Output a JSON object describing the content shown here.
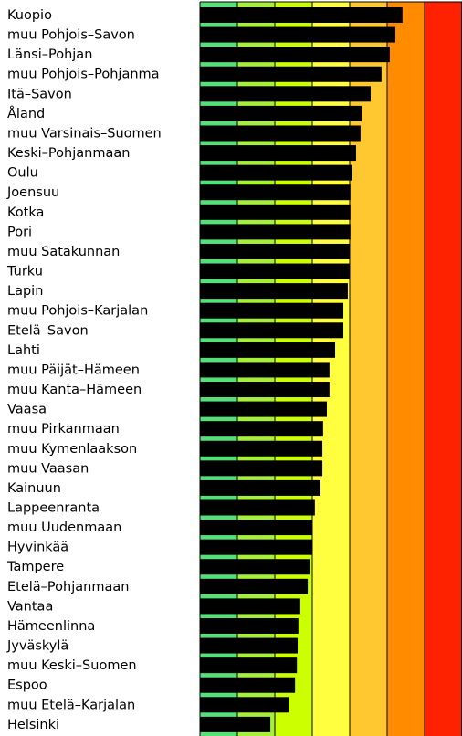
{
  "chart_data": {
    "type": "bar",
    "orientation": "horizontal",
    "categories": [
      "Kuopio",
      "muu Pohjois–Savon",
      "Länsi–Pohjan",
      "muu Pohjois–Pohjanma",
      "Itä–Savon",
      "Åland",
      "muu Varsinais–Suomen",
      "Keski–Pohjanmaan",
      "Oulu",
      "Joensuu",
      "Kotka",
      "Pori",
      "muu Satakunnan",
      "Turku",
      "Lapin",
      "muu Pohjois–Karjalan",
      "Etelä–Savon",
      "Lahti",
      "muu Päijät–Hämeen",
      "muu Kanta–Hämeen",
      "Vaasa",
      "muu Pirkanmaan",
      "muu Kymenlaakson",
      "muu Vaasan",
      "Kainuun",
      "Lappeenranta",
      "muu Uudenmaan",
      "Hyvinkää",
      "Tampere",
      "Etelä–Pohjanmaan",
      "Vantaa",
      "Hämeenlinna",
      "Jyväskylä",
      "muu Keski–Suomen",
      "Espoo",
      "muu Etelä–Karjalan",
      "Helsinki"
    ],
    "values": [
      5.41,
      5.22,
      5.07,
      4.85,
      4.56,
      4.32,
      4.29,
      4.17,
      4.07,
      4.02,
      4.02,
      4.02,
      4.0,
      4.0,
      3.95,
      3.83,
      3.83,
      3.61,
      3.46,
      3.46,
      3.39,
      3.29,
      3.27,
      3.27,
      3.22,
      3.07,
      3.0,
      3.0,
      2.93,
      2.88,
      2.68,
      2.63,
      2.61,
      2.59,
      2.54,
      2.37,
      1.88
    ],
    "color": "#000000",
    "xlim": [
      0,
      7
    ],
    "band_colors": [
      "#55e07a",
      "#a6f03c",
      "#ccff00",
      "#ffff40",
      "#ffc830",
      "#ff8c00",
      "#ff2200"
    ]
  }
}
